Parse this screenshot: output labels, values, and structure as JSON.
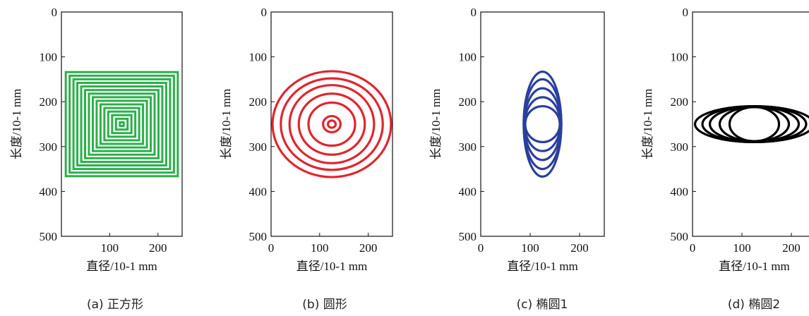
{
  "chart_data": [
    {
      "type": "line",
      "panel": "a",
      "caption": "(a) 正方形",
      "shape": "square",
      "color": "#2bb04a",
      "xlabel": "直径/10-1 mm",
      "ylabel": "长度/10-1 mm",
      "xlim": [
        0,
        250
      ],
      "ylim": [
        0,
        500
      ],
      "y_inverted": true,
      "xticks": [
        "100",
        "200"
      ],
      "yticks": [
        "0",
        "100",
        "200",
        "300",
        "400",
        "500"
      ],
      "center": [
        125,
        250
      ],
      "half_widths": [
        4,
        12,
        20,
        28,
        36,
        44,
        52,
        60,
        68,
        76,
        84,
        92,
        100,
        108,
        116
      ],
      "half_heights": [
        4,
        12,
        20,
        28,
        36,
        44,
        52,
        60,
        68,
        76,
        84,
        92,
        100,
        108,
        116
      ]
    },
    {
      "type": "line",
      "panel": "b",
      "caption": "(b) 圆形",
      "shape": "ellipse",
      "color": "#e0262f",
      "xlabel": "直径/10-1 mm",
      "ylabel": "长度/10-1 mm",
      "xlim": [
        0,
        250
      ],
      "ylim": [
        0,
        500
      ],
      "y_inverted": true,
      "xticks": [
        "0",
        "100",
        "200"
      ],
      "yticks": [
        "0",
        "100",
        "200",
        "300",
        "400",
        "500"
      ],
      "center": [
        125,
        250
      ],
      "x_radii": [
        8,
        18,
        48,
        68,
        87,
        105,
        122
      ],
      "y_radii": [
        8,
        18,
        48,
        68,
        87,
        102,
        118
      ]
    },
    {
      "type": "line",
      "panel": "c",
      "caption": "(c) 椭圆1",
      "shape": "ellipse",
      "color": "#2b3f9c",
      "xlabel": "直径/10-1 mm",
      "ylabel": "长度/10-1 mm",
      "xlim": [
        0,
        250
      ],
      "ylim": [
        0,
        500
      ],
      "y_inverted": true,
      "xticks": [
        "0",
        "100",
        "200"
      ],
      "yticks": [
        "0",
        "100",
        "200",
        "300",
        "400",
        "500"
      ],
      "center": [
        125,
        250
      ],
      "x_radii": [
        35,
        36,
        37,
        38,
        38
      ],
      "y_radii": [
        40,
        60,
        80,
        100,
        117
      ]
    },
    {
      "type": "line",
      "panel": "d",
      "caption": "(d) 椭圆2",
      "shape": "ellipse",
      "color": "#000000",
      "xlabel": "直径/10-1 mm",
      "ylabel": "长度/10-1 mm",
      "xlim": [
        0,
        250
      ],
      "ylim": [
        0,
        500
      ],
      "y_inverted": true,
      "xticks": [
        "0",
        "100",
        "200"
      ],
      "yticks": [
        "0",
        "100",
        "200",
        "300",
        "400",
        "500"
      ],
      "center": [
        125,
        250
      ],
      "x_radii": [
        50,
        70,
        90,
        105,
        120
      ],
      "y_radii": [
        38,
        38,
        39,
        40,
        40
      ]
    }
  ]
}
